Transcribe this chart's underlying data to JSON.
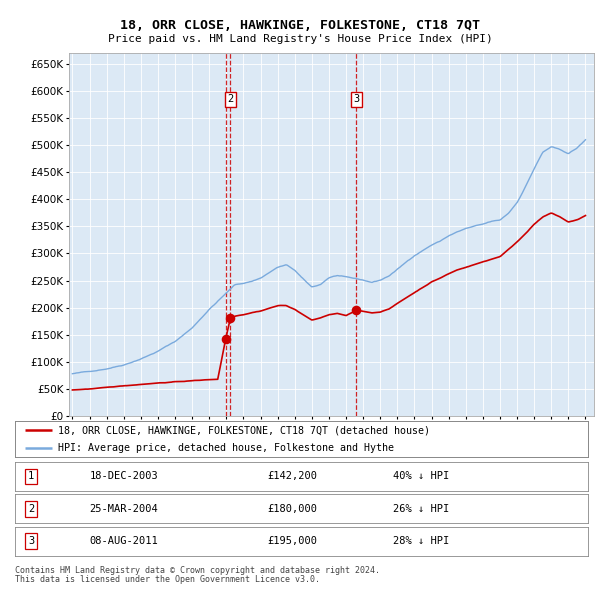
{
  "title": "18, ORR CLOSE, HAWKINGE, FOLKESTONE, CT18 7QT",
  "subtitle": "Price paid vs. HM Land Registry's House Price Index (HPI)",
  "bg_color": "#dce9f5",
  "red_line_color": "#cc0000",
  "blue_line_color": "#7aaadd",
  "legend_line_red": "18, ORR CLOSE, HAWKINGE, FOLKESTONE, CT18 7QT (detached house)",
  "legend_line_blue": "HPI: Average price, detached house, Folkestone and Hythe",
  "footer1": "Contains HM Land Registry data © Crown copyright and database right 2024.",
  "footer2": "This data is licensed under the Open Government Licence v3.0.",
  "transactions": [
    {
      "num": 1,
      "date": "18-DEC-2003",
      "price": "£142,200",
      "pct": "40% ↓ HPI",
      "year": 2003.96
    },
    {
      "num": 2,
      "date": "25-MAR-2004",
      "price": "£180,000",
      "pct": "26% ↓ HPI",
      "year": 2004.23
    },
    {
      "num": 3,
      "date": "08-AUG-2011",
      "price": "£195,000",
      "pct": "28% ↓ HPI",
      "year": 2011.6
    }
  ],
  "sale_years": [
    2003.96,
    2004.23,
    2011.6
  ],
  "sale_prices": [
    142200,
    180000,
    195000
  ],
  "ylim": [
    0,
    670000
  ],
  "xlim_start": 1994.8,
  "xlim_end": 2025.5,
  "hpi_keypoints": [
    [
      1995.0,
      78000
    ],
    [
      1996.0,
      82000
    ],
    [
      1997.0,
      88000
    ],
    [
      1998.0,
      96000
    ],
    [
      1999.0,
      108000
    ],
    [
      2000.0,
      122000
    ],
    [
      2001.0,
      140000
    ],
    [
      2002.0,
      165000
    ],
    [
      2003.0,
      200000
    ],
    [
      2004.0,
      230000
    ],
    [
      2004.5,
      245000
    ],
    [
      2005.0,
      248000
    ],
    [
      2005.5,
      252000
    ],
    [
      2006.0,
      258000
    ],
    [
      2006.5,
      268000
    ],
    [
      2007.0,
      278000
    ],
    [
      2007.5,
      282000
    ],
    [
      2008.0,
      272000
    ],
    [
      2008.5,
      255000
    ],
    [
      2009.0,
      240000
    ],
    [
      2009.5,
      245000
    ],
    [
      2010.0,
      258000
    ],
    [
      2010.5,
      262000
    ],
    [
      2011.0,
      258000
    ],
    [
      2011.5,
      255000
    ],
    [
      2012.0,
      252000
    ],
    [
      2012.5,
      248000
    ],
    [
      2013.0,
      252000
    ],
    [
      2013.5,
      260000
    ],
    [
      2014.0,
      272000
    ],
    [
      2014.5,
      285000
    ],
    [
      2015.0,
      298000
    ],
    [
      2015.5,
      308000
    ],
    [
      2016.0,
      318000
    ],
    [
      2016.5,
      325000
    ],
    [
      2017.0,
      335000
    ],
    [
      2017.5,
      342000
    ],
    [
      2018.0,
      348000
    ],
    [
      2018.5,
      352000
    ],
    [
      2019.0,
      355000
    ],
    [
      2019.5,
      360000
    ],
    [
      2020.0,
      362000
    ],
    [
      2020.5,
      375000
    ],
    [
      2021.0,
      395000
    ],
    [
      2021.5,
      425000
    ],
    [
      2022.0,
      458000
    ],
    [
      2022.5,
      488000
    ],
    [
      2023.0,
      498000
    ],
    [
      2023.5,
      492000
    ],
    [
      2024.0,
      485000
    ],
    [
      2024.5,
      495000
    ],
    [
      2025.0,
      510000
    ]
  ],
  "red_keypoints": [
    [
      1995.0,
      48000
    ],
    [
      1996.0,
      50000
    ],
    [
      1997.0,
      52000
    ],
    [
      1998.0,
      55000
    ],
    [
      1999.0,
      58000
    ],
    [
      2000.0,
      61000
    ],
    [
      2001.0,
      63000
    ],
    [
      2002.0,
      65000
    ],
    [
      2003.0,
      67000
    ],
    [
      2003.5,
      68000
    ],
    [
      2003.96,
      142200
    ],
    [
      2004.23,
      180000
    ],
    [
      2004.5,
      185000
    ],
    [
      2005.0,
      188000
    ],
    [
      2005.5,
      192000
    ],
    [
      2006.0,
      195000
    ],
    [
      2006.5,
      200000
    ],
    [
      2007.0,
      205000
    ],
    [
      2007.5,
      205000
    ],
    [
      2008.0,
      198000
    ],
    [
      2008.5,
      188000
    ],
    [
      2009.0,
      178000
    ],
    [
      2009.5,
      182000
    ],
    [
      2010.0,
      188000
    ],
    [
      2010.5,
      190000
    ],
    [
      2011.0,
      186000
    ],
    [
      2011.6,
      195000
    ],
    [
      2012.0,
      193000
    ],
    [
      2012.5,
      190000
    ],
    [
      2013.0,
      192000
    ],
    [
      2013.5,
      198000
    ],
    [
      2014.0,
      208000
    ],
    [
      2014.5,
      218000
    ],
    [
      2015.0,
      228000
    ],
    [
      2015.5,
      238000
    ],
    [
      2016.0,
      248000
    ],
    [
      2016.5,
      255000
    ],
    [
      2017.0,
      263000
    ],
    [
      2017.5,
      270000
    ],
    [
      2018.0,
      275000
    ],
    [
      2018.5,
      280000
    ],
    [
      2019.0,
      285000
    ],
    [
      2019.5,
      290000
    ],
    [
      2020.0,
      295000
    ],
    [
      2020.5,
      308000
    ],
    [
      2021.0,
      322000
    ],
    [
      2021.5,
      338000
    ],
    [
      2022.0,
      355000
    ],
    [
      2022.5,
      368000
    ],
    [
      2023.0,
      375000
    ],
    [
      2023.5,
      368000
    ],
    [
      2024.0,
      358000
    ],
    [
      2024.5,
      362000
    ],
    [
      2025.0,
      370000
    ]
  ]
}
